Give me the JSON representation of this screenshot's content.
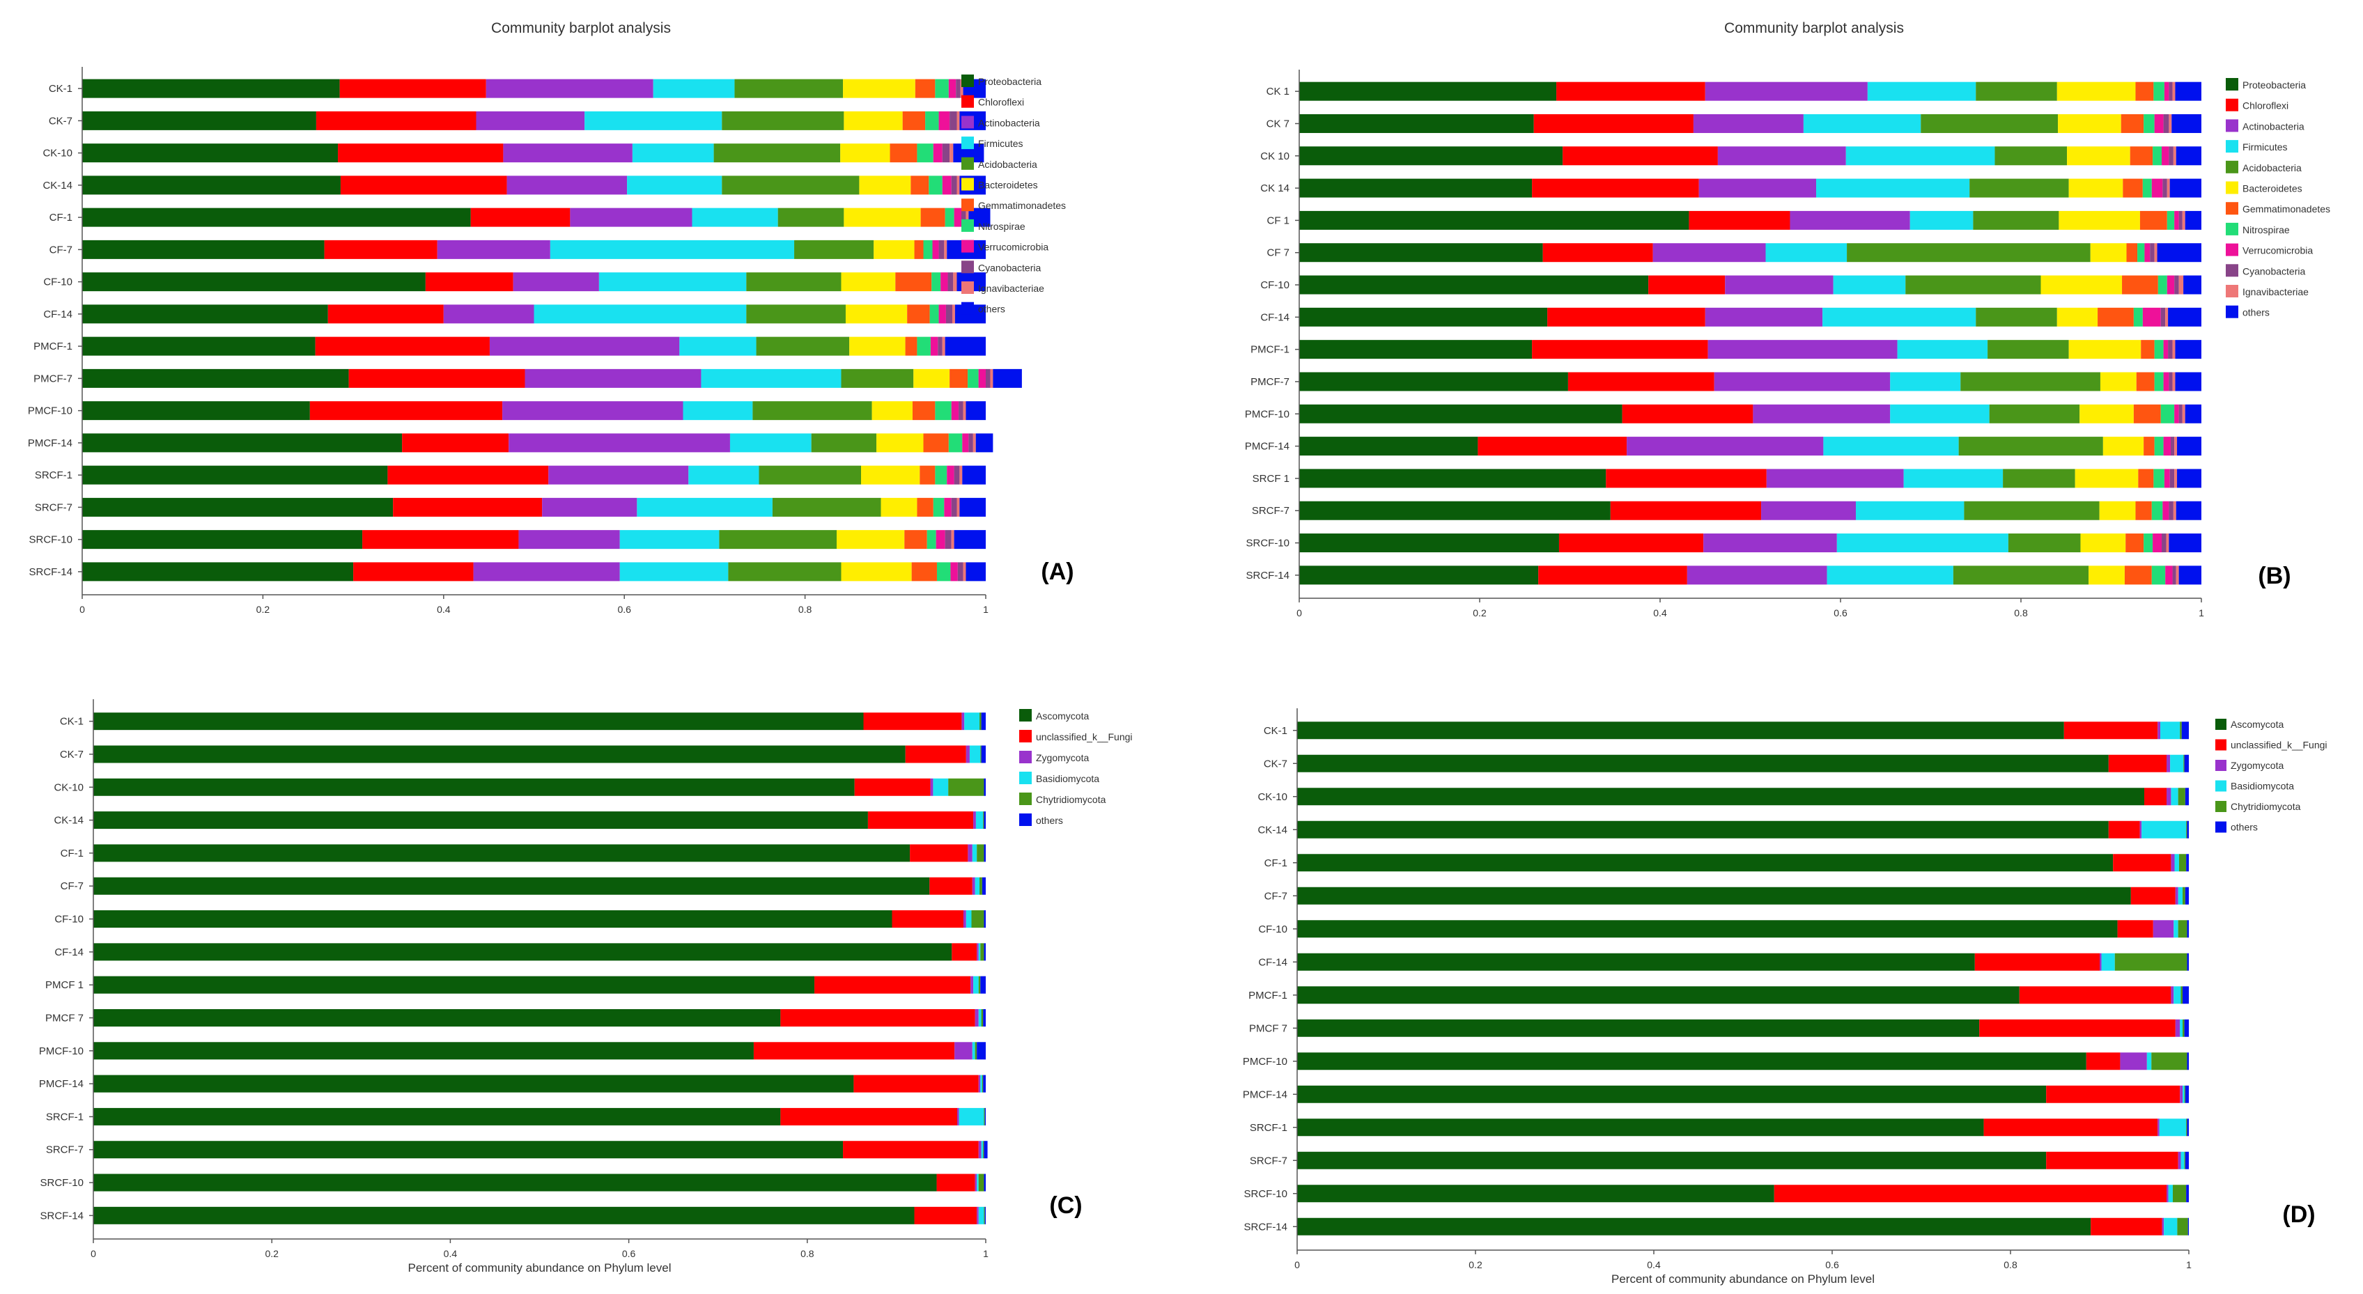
{
  "legend_colors": {
    "Proteobacteria": "#0a5c0a",
    "Chloroflexi": "#ff0000",
    "Actinobacteria": "#9933cc",
    "Firmicutes": "#19e1f0",
    "Acidobacteria": "#4a9619",
    "Bacteroidetes": "#ffee00",
    "Gemmatimonadetes": "#ff5511",
    "Nitrospirae": "#22dd77",
    "Verrucomicrobia": "#ee1199",
    "Cyanobacteria": "#884488",
    "Ignavibacteriae": "#ee7777",
    "others": "#0011ee",
    "Ascomycota": "#0a5c0a",
    "unclassified_k__Fungi": "#ff0000",
    "Zygomycota": "#9933cc",
    "Basidiomycota": "#19e1f0",
    "Chytridiomycota": "#4a9619"
  },
  "chart_data": [
    {
      "type": "bar",
      "orientation": "horizontal-stacked",
      "panel": "(A)",
      "title": "Community barplot analysis",
      "xlabel": "",
      "xlim": [
        0,
        1
      ],
      "xticks": [
        "0",
        "0.2",
        "0.4",
        "0.6",
        "0.8",
        "1"
      ],
      "categories": [
        "CK-1",
        "CK-7",
        "CK-10",
        "CK-14",
        "CF-1",
        "CF-7",
        "CF-10",
        "CF-14",
        "PMCF-1",
        "PMCF-7",
        "PMCF-10",
        "PMCF-14",
        "SRCF-1",
        "SRCF-7",
        "SRCF-10",
        "SRCF-14"
      ],
      "series": [
        {
          "name": "Proteobacteria",
          "values": [
            0.285,
            0.259,
            0.283,
            0.286,
            0.43,
            0.268,
            0.38,
            0.272,
            0.258,
            0.295,
            0.252,
            0.354,
            0.338,
            0.344,
            0.31,
            0.3
          ]
        },
        {
          "name": "Chloroflexi",
          "values": [
            0.162,
            0.177,
            0.183,
            0.184,
            0.11,
            0.125,
            0.097,
            0.128,
            0.193,
            0.195,
            0.213,
            0.118,
            0.178,
            0.165,
            0.173,
            0.133
          ]
        },
        {
          "name": "Actinobacteria",
          "values": [
            0.185,
            0.12,
            0.143,
            0.133,
            0.135,
            0.125,
            0.095,
            0.1,
            0.21,
            0.195,
            0.2,
            0.245,
            0.155,
            0.105,
            0.112,
            0.162
          ]
        },
        {
          "name": "Firmicutes",
          "values": [
            0.09,
            0.152,
            0.09,
            0.105,
            0.095,
            0.27,
            0.163,
            0.235,
            0.085,
            0.155,
            0.077,
            0.09,
            0.078,
            0.15,
            0.11,
            0.12
          ]
        },
        {
          "name": "Acidobacteria",
          "values": [
            0.12,
            0.135,
            0.14,
            0.152,
            0.073,
            0.088,
            0.105,
            0.11,
            0.103,
            0.08,
            0.132,
            0.072,
            0.113,
            0.12,
            0.13,
            0.125
          ]
        },
        {
          "name": "Bacteroidetes",
          "values": [
            0.08,
            0.065,
            0.055,
            0.057,
            0.085,
            0.045,
            0.06,
            0.068,
            0.062,
            0.04,
            0.045,
            0.052,
            0.065,
            0.04,
            0.075,
            0.078
          ]
        },
        {
          "name": "Gemmatimonadetes",
          "values": [
            0.022,
            0.025,
            0.03,
            0.02,
            0.027,
            0.01,
            0.04,
            0.025,
            0.013,
            0.02,
            0.025,
            0.028,
            0.017,
            0.018,
            0.025,
            0.028
          ]
        },
        {
          "name": "Nitrospirae",
          "values": [
            0.015,
            0.015,
            0.018,
            0.015,
            0.01,
            0.01,
            0.01,
            0.01,
            0.015,
            0.012,
            0.018,
            0.015,
            0.013,
            0.012,
            0.01,
            0.015
          ]
        },
        {
          "name": "Verrucomicrobia",
          "values": [
            0.008,
            0.012,
            0.01,
            0.01,
            0.008,
            0.007,
            0.008,
            0.008,
            0.008,
            0.008,
            0.008,
            0.007,
            0.008,
            0.008,
            0.01,
            0.008
          ]
        },
        {
          "name": "Cyanobacteria",
          "values": [
            0.005,
            0.008,
            0.008,
            0.006,
            0.005,
            0.006,
            0.006,
            0.007,
            0.005,
            0.005,
            0.005,
            0.005,
            0.006,
            0.006,
            0.007,
            0.006
          ]
        },
        {
          "name": "Ignavibacteriae",
          "values": [
            0.003,
            0.003,
            0.004,
            0.003,
            0.003,
            0.003,
            0.004,
            0.003,
            0.003,
            0.003,
            0.003,
            0.003,
            0.003,
            0.003,
            0.003,
            0.003
          ]
        },
        {
          "name": "others",
          "values": [
            0.025,
            0.029,
            0.034,
            0.029,
            0.024,
            0.043,
            0.032,
            0.034,
            0.045,
            0.032,
            0.022,
            0.019,
            0.026,
            0.029,
            0.035,
            0.022
          ]
        }
      ]
    },
    {
      "type": "bar",
      "orientation": "horizontal-stacked",
      "panel": "(B)",
      "title": "Community barplot analysis",
      "xlabel": "",
      "xlim": [
        0,
        1
      ],
      "xticks": [
        "0",
        "0.2",
        "0.4",
        "0.6",
        "0.8",
        "1"
      ],
      "categories": [
        "CK 1",
        "CK 7",
        "CK 10",
        "CK 14",
        "CF 1",
        "CF 7",
        "CF-10",
        "CF-14",
        "PMCF-1",
        "PMCF-7",
        "PMCF-10",
        "PMCF-14",
        "SRCF 1",
        "SRCF-7",
        "SRCF-10",
        "SRCF-14"
      ],
      "series": [
        {
          "name": "Proteobacteria",
          "values": [
            0.285,
            0.26,
            0.292,
            0.258,
            0.432,
            0.27,
            0.387,
            0.275,
            0.258,
            0.298,
            0.358,
            0.198,
            0.34,
            0.345,
            0.288,
            0.265
          ]
        },
        {
          "name": "Chloroflexi",
          "values": [
            0.165,
            0.177,
            0.172,
            0.185,
            0.112,
            0.122,
            0.085,
            0.175,
            0.195,
            0.162,
            0.145,
            0.165,
            0.178,
            0.167,
            0.16,
            0.165
          ]
        },
        {
          "name": "Actinobacteria",
          "values": [
            0.18,
            0.122,
            0.142,
            0.13,
            0.133,
            0.125,
            0.12,
            0.13,
            0.21,
            0.195,
            0.152,
            0.218,
            0.152,
            0.105,
            0.148,
            0.155
          ]
        },
        {
          "name": "Firmicutes",
          "values": [
            0.12,
            0.13,
            0.165,
            0.17,
            0.07,
            0.09,
            0.08,
            0.17,
            0.1,
            0.078,
            0.11,
            0.15,
            0.11,
            0.12,
            0.19,
            0.14
          ]
        },
        {
          "name": "Acidobacteria",
          "values": [
            0.09,
            0.152,
            0.08,
            0.11,
            0.095,
            0.27,
            0.15,
            0.09,
            0.09,
            0.155,
            0.1,
            0.16,
            0.08,
            0.15,
            0.08,
            0.15
          ]
        },
        {
          "name": "Bacteroidetes",
          "values": [
            0.087,
            0.07,
            0.07,
            0.06,
            0.09,
            0.04,
            0.09,
            0.045,
            0.08,
            0.04,
            0.06,
            0.045,
            0.07,
            0.04,
            0.05,
            0.04
          ]
        },
        {
          "name": "Gemmatimonadetes",
          "values": [
            0.02,
            0.025,
            0.025,
            0.022,
            0.03,
            0.012,
            0.04,
            0.04,
            0.015,
            0.02,
            0.03,
            0.012,
            0.017,
            0.018,
            0.02,
            0.03
          ]
        },
        {
          "name": "Nitrospirae",
          "values": [
            0.012,
            0.012,
            0.01,
            0.01,
            0.008,
            0.008,
            0.01,
            0.01,
            0.01,
            0.01,
            0.015,
            0.01,
            0.012,
            0.012,
            0.01,
            0.015
          ]
        },
        {
          "name": "Verrucomicrobia",
          "values": [
            0.005,
            0.01,
            0.008,
            0.012,
            0.005,
            0.006,
            0.008,
            0.02,
            0.005,
            0.006,
            0.005,
            0.008,
            0.006,
            0.007,
            0.01,
            0.008
          ]
        },
        {
          "name": "Cyanobacteria",
          "values": [
            0.004,
            0.006,
            0.005,
            0.005,
            0.004,
            0.005,
            0.005,
            0.005,
            0.005,
            0.004,
            0.004,
            0.004,
            0.005,
            0.005,
            0.005,
            0.004
          ]
        },
        {
          "name": "Ignavibacteriae",
          "values": [
            0.003,
            0.003,
            0.003,
            0.003,
            0.003,
            0.003,
            0.005,
            0.003,
            0.003,
            0.003,
            0.003,
            0.003,
            0.003,
            0.003,
            0.003,
            0.003
          ]
        },
        {
          "name": "others",
          "values": [
            0.029,
            0.033,
            0.028,
            0.035,
            0.018,
            0.049,
            0.02,
            0.037,
            0.029,
            0.029,
            0.018,
            0.027,
            0.027,
            0.028,
            0.036,
            0.025
          ]
        }
      ]
    },
    {
      "type": "bar",
      "orientation": "horizontal-stacked",
      "panel": "(C)",
      "title": "",
      "xlabel": "Percent of community abundance on Phylum level",
      "xlim": [
        0,
        1
      ],
      "xticks": [
        "0",
        "0.2",
        "0.4",
        "0.6",
        "0.8",
        "1"
      ],
      "categories": [
        "CK-1",
        "CK-7",
        "CK-10",
        "CK-14",
        "CF-1",
        "CF-7",
        "CF-10",
        "CF-14",
        "PMCF 1",
        "PMCF 7",
        "PMCF-10",
        "PMCF-14",
        "SRCF-1",
        "SRCF-7",
        "SRCF-10",
        "SRCF-14"
      ],
      "series": [
        {
          "name": "Ascomycota",
          "values": [
            0.863,
            0.91,
            0.853,
            0.868,
            0.915,
            0.937,
            0.895,
            0.962,
            0.808,
            0.77,
            0.74,
            0.852,
            0.77,
            0.84,
            0.945,
            0.92
          ]
        },
        {
          "name": "unclassified_k__Fungi",
          "values": [
            0.11,
            0.068,
            0.085,
            0.118,
            0.065,
            0.048,
            0.08,
            0.028,
            0.175,
            0.218,
            0.225,
            0.14,
            0.198,
            0.152,
            0.043,
            0.07
          ]
        },
        {
          "name": "Zygomycota",
          "values": [
            0.003,
            0.004,
            0.003,
            0.003,
            0.005,
            0.003,
            0.003,
            0.002,
            0.003,
            0.004,
            0.02,
            0.002,
            0.002,
            0.003,
            0.002,
            0.002
          ]
        },
        {
          "name": "Basidiomycota",
          "values": [
            0.017,
            0.012,
            0.017,
            0.008,
            0.005,
            0.005,
            0.006,
            0.002,
            0.006,
            0.003,
            0.003,
            0.002,
            0.028,
            0.002,
            0.002,
            0.006
          ]
        },
        {
          "name": "Chytridiomycota",
          "values": [
            0.002,
            0.001,
            0.04,
            0.001,
            0.008,
            0.003,
            0.014,
            0.004,
            0.002,
            0.002,
            0.002,
            0.001,
            0.001,
            0.001,
            0.006,
            0.001
          ]
        },
        {
          "name": "others",
          "values": [
            0.005,
            0.005,
            0.002,
            0.002,
            0.002,
            0.004,
            0.002,
            0.002,
            0.006,
            0.003,
            0.01,
            0.003,
            0.001,
            0.004,
            0.002,
            0.001
          ]
        }
      ]
    },
    {
      "type": "bar",
      "orientation": "horizontal-stacked",
      "panel": "(D)",
      "title": "",
      "xlabel": "Percent of community abundance on Phylum level",
      "xlim": [
        0,
        1
      ],
      "xticks": [
        "0",
        "0.2",
        "0.4",
        "0.6",
        "0.8",
        "1"
      ],
      "categories": [
        "CK-1",
        "CK-7",
        "CK-10",
        "CK-14",
        "CF-1",
        "CF-7",
        "CF-10",
        "CF-14",
        "PMCF-1",
        "PMCF 7",
        "PMCF-10",
        "PMCF-14",
        "SRCF-1",
        "SRCF-7",
        "SRCF-10",
        "SRCF-14"
      ],
      "series": [
        {
          "name": "Ascomycota",
          "values": [
            0.86,
            0.91,
            0.95,
            0.91,
            0.915,
            0.935,
            0.92,
            0.76,
            0.81,
            0.765,
            0.885,
            0.84,
            0.77,
            0.84,
            0.535,
            0.89
          ]
        },
        {
          "name": "unclassified_k__Fungi",
          "values": [
            0.105,
            0.065,
            0.025,
            0.035,
            0.065,
            0.05,
            0.04,
            0.14,
            0.17,
            0.22,
            0.038,
            0.15,
            0.195,
            0.148,
            0.44,
            0.08
          ]
        },
        {
          "name": "Zygomycota",
          "values": [
            0.003,
            0.004,
            0.005,
            0.002,
            0.004,
            0.003,
            0.023,
            0.002,
            0.003,
            0.005,
            0.03,
            0.003,
            0.002,
            0.003,
            0.002,
            0.002
          ]
        },
        {
          "name": "Basidiomycota",
          "values": [
            0.022,
            0.015,
            0.008,
            0.05,
            0.005,
            0.005,
            0.005,
            0.015,
            0.008,
            0.003,
            0.005,
            0.002,
            0.03,
            0.004,
            0.005,
            0.015
          ]
        },
        {
          "name": "Chytridiomycota",
          "values": [
            0.002,
            0.001,
            0.008,
            0.001,
            0.008,
            0.003,
            0.01,
            0.081,
            0.002,
            0.002,
            0.04,
            0.001,
            0.001,
            0.001,
            0.015,
            0.012
          ]
        },
        {
          "name": "others",
          "values": [
            0.008,
            0.005,
            0.004,
            0.002,
            0.003,
            0.004,
            0.002,
            0.002,
            0.007,
            0.005,
            0.002,
            0.004,
            0.002,
            0.004,
            0.003,
            0.001
          ]
        }
      ]
    }
  ],
  "legends": {
    "bacteria": [
      "Proteobacteria",
      "Chloroflexi",
      "Actinobacteria",
      "Firmicutes",
      "Acidobacteria",
      "Bacteroidetes",
      "Gemmatimonadetes",
      "Nitrospirae",
      "Verrucomicrobia",
      "Cyanobacteria",
      "Ignavibacteriae",
      "others"
    ],
    "fungi": [
      "Ascomycota",
      "unclassified_k__Fungi",
      "Zygomycota",
      "Basidiomycota",
      "Chytridiomycota",
      "others"
    ]
  }
}
